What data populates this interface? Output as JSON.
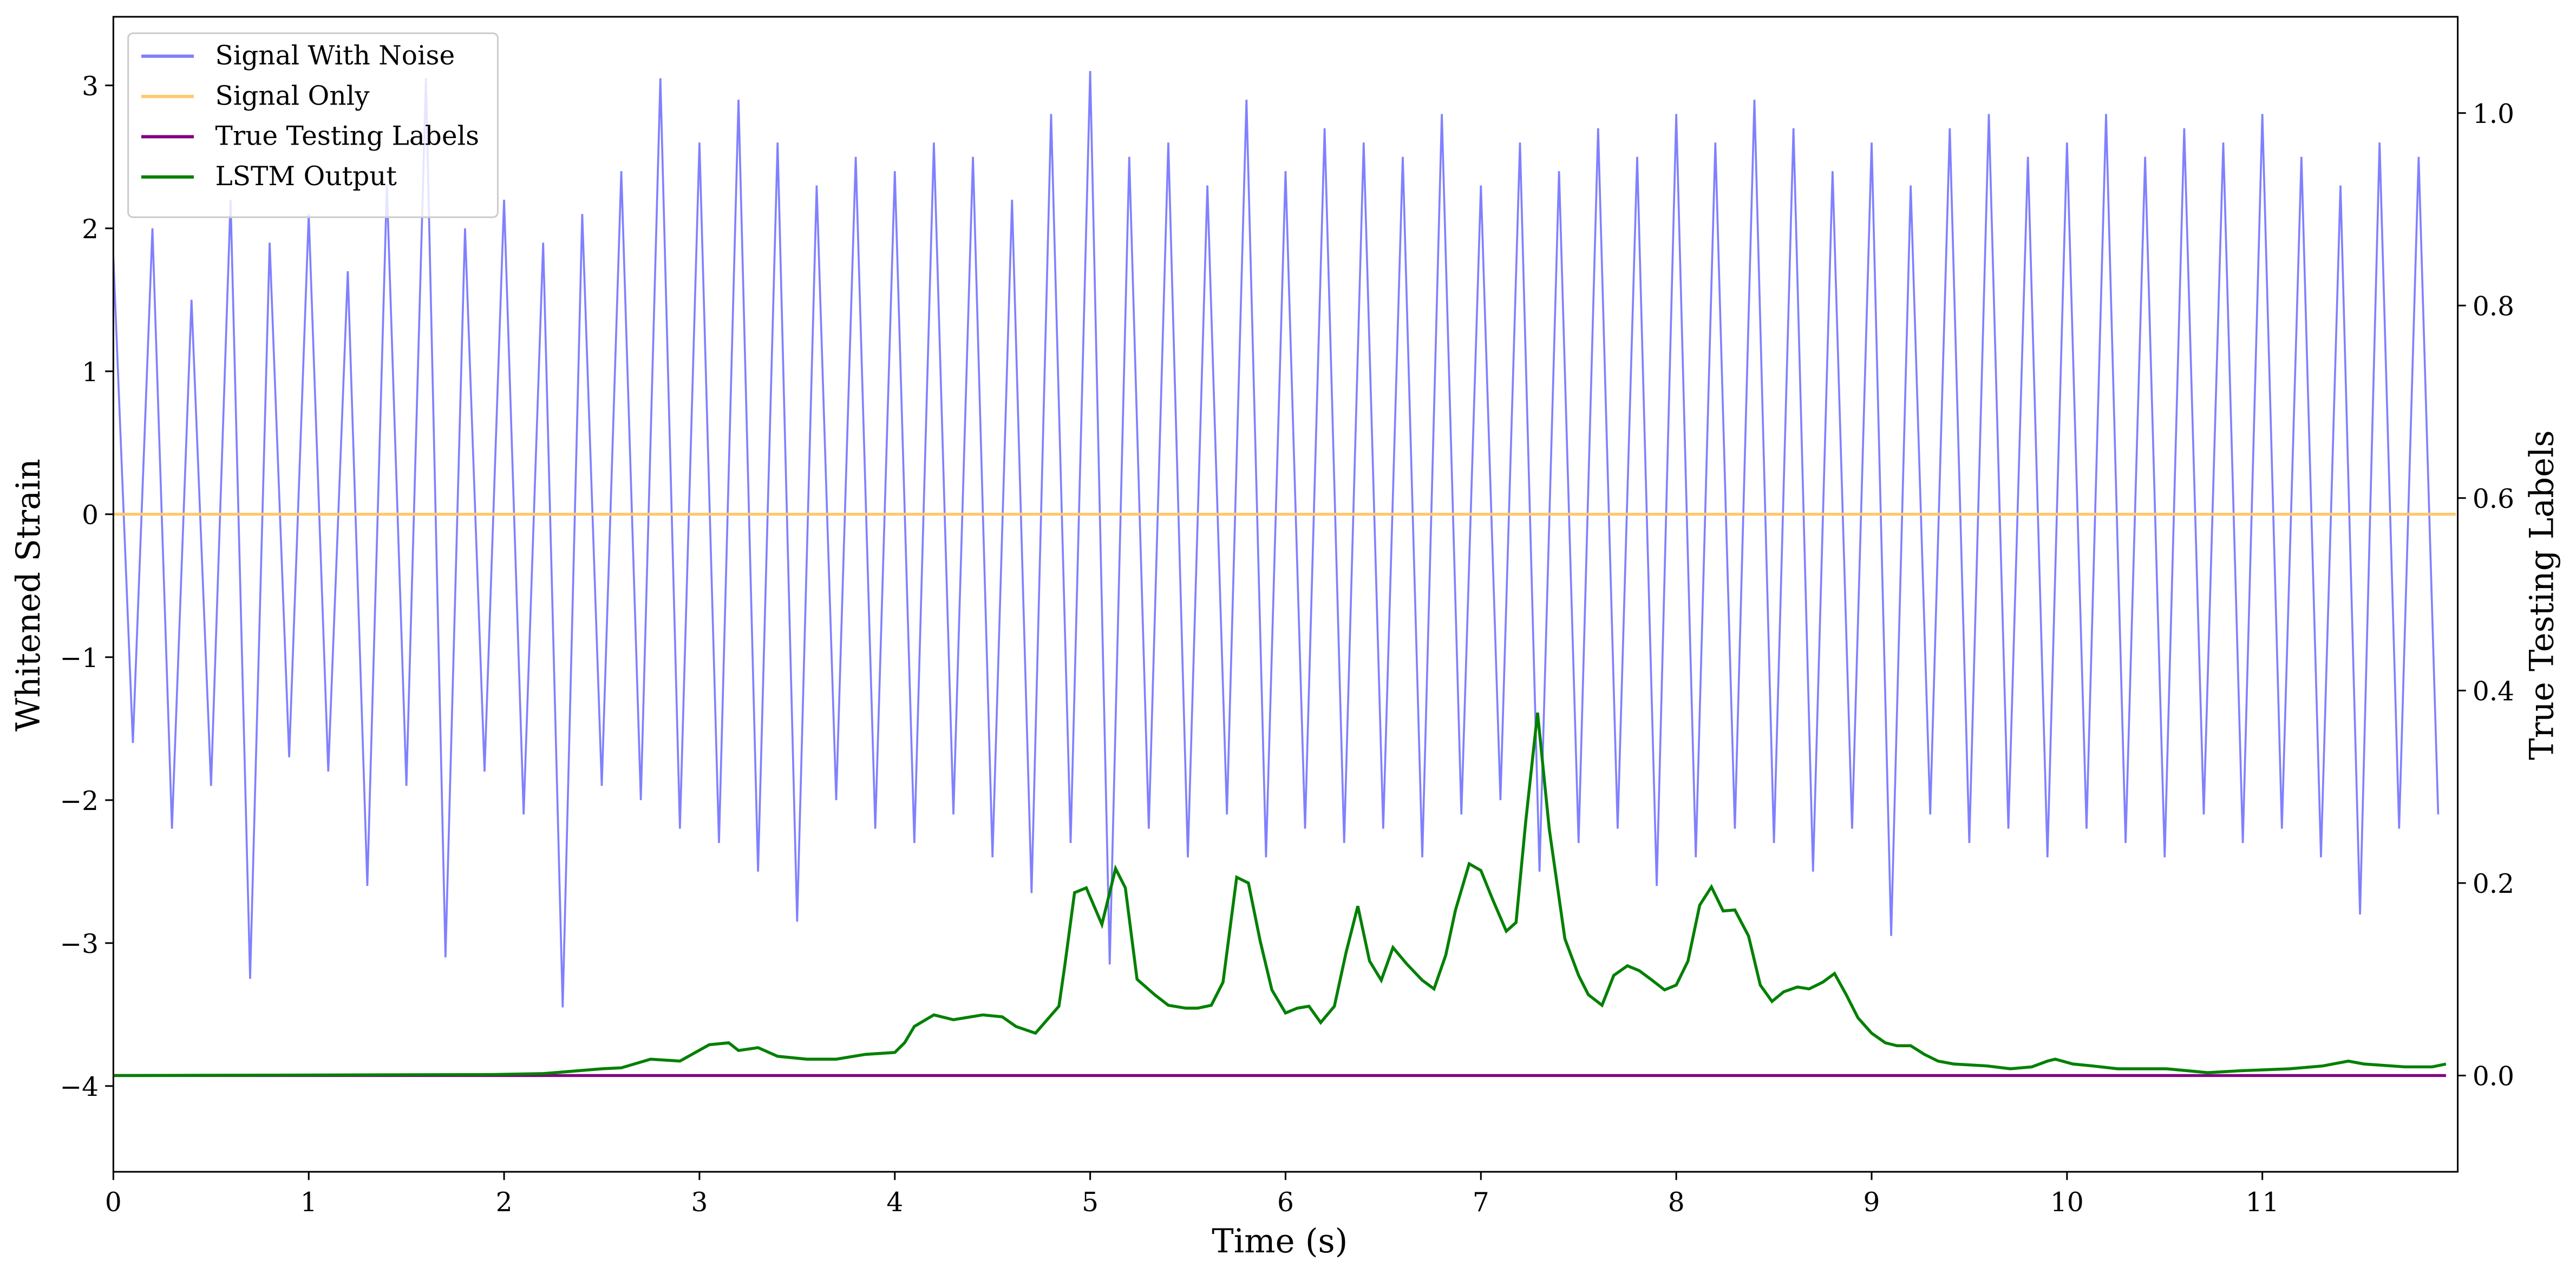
{
  "chart_data": {
    "type": "line",
    "xlabel": "Time (s)",
    "ylabel": "Whitened Strain",
    "y2label": "True Testing Labels",
    "xlim": [
      0,
      12
    ],
    "xticks": [
      0,
      1,
      2,
      3,
      4,
      5,
      6,
      7,
      8,
      9,
      10,
      11
    ],
    "ylim": [
      -4.6,
      3.48
    ],
    "yticks": [
      {
        "value": -4,
        "label": "−4"
      },
      {
        "value": -3,
        "label": "−3"
      },
      {
        "value": -2,
        "label": "−2"
      },
      {
        "value": -1,
        "label": "−1"
      },
      0,
      1,
      2,
      3
    ],
    "y2lim": [
      -0.1,
      1.1
    ],
    "y2ticks": [
      {
        "value": 0,
        "label": "0.0"
      },
      {
        "value": 0.2,
        "label": "0.2"
      },
      {
        "value": 0.4,
        "label": "0.4"
      },
      {
        "value": 0.6,
        "label": "0.6"
      },
      {
        "value": 0.8,
        "label": "0.8"
      },
      {
        "value": 1,
        "label": "1.0"
      }
    ],
    "legend": "upper left",
    "series": [
      {
        "name": "Signal With Noise",
        "color": "#8080ff",
        "axis": "y",
        "x": [
          0,
          0.1,
          0.2,
          0.3,
          0.4,
          0.5,
          0.6,
          0.7,
          0.8,
          0.9,
          1,
          1.1,
          1.2,
          1.3,
          1.4,
          1.5,
          1.6,
          1.7,
          1.8,
          1.9,
          2,
          2.1,
          2.2,
          2.3,
          2.4,
          2.5,
          2.6,
          2.7,
          2.8,
          2.9,
          3,
          3.1,
          3.2,
          3.3,
          3.4,
          3.5,
          3.6,
          3.7,
          3.8,
          3.9,
          4,
          4.1,
          4.2,
          4.3,
          4.4,
          4.5,
          4.6,
          4.7,
          4.8,
          4.9,
          5,
          5.1,
          5.2,
          5.3,
          5.4,
          5.5,
          5.6,
          5.7,
          5.8,
          5.9,
          6,
          6.1,
          6.2,
          6.3,
          6.4,
          6.5,
          6.6,
          6.7,
          6.8,
          6.9,
          7,
          7.1,
          7.2,
          7.3,
          7.4,
          7.5,
          7.6,
          7.7,
          7.8,
          7.9,
          8,
          8.1,
          8.2,
          8.3,
          8.4,
          8.5,
          8.6,
          8.7,
          8.8,
          8.9,
          9,
          9.1,
          9.2,
          9.3,
          9.4,
          9.5,
          9.6,
          9.7,
          9.8,
          9.9,
          10,
          10.1,
          10.2,
          10.3,
          10.4,
          10.5,
          10.6,
          10.7,
          10.8,
          10.9,
          11,
          11.1,
          11.2,
          11.3,
          11.4,
          11.5,
          11.6,
          11.7,
          11.8,
          11.9
        ],
        "values": [
          1.8,
          -1.6,
          2.0,
          -2.2,
          1.5,
          -1.9,
          2.2,
          -3.25,
          1.9,
          -1.7,
          2.1,
          -1.8,
          1.7,
          -2.6,
          2.3,
          -1.9,
          3.05,
          -3.1,
          2.0,
          -1.8,
          2.2,
          -2.1,
          1.9,
          -3.45,
          2.1,
          -1.9,
          2.4,
          -2.0,
          3.05,
          -2.2,
          2.6,
          -2.3,
          2.9,
          -2.5,
          2.6,
          -2.85,
          2.3,
          -2.0,
          2.5,
          -2.2,
          2.4,
          -2.3,
          2.6,
          -2.1,
          2.5,
          -2.4,
          2.2,
          -2.65,
          2.8,
          -2.3,
          3.1,
          -3.15,
          2.5,
          -2.2,
          2.6,
          -2.4,
          2.3,
          -2.1,
          2.9,
          -2.4,
          2.4,
          -2.2,
          2.7,
          -2.3,
          2.6,
          -2.2,
          2.5,
          -2.4,
          2.8,
          -2.1,
          2.3,
          -2.0,
          2.6,
          -2.5,
          2.4,
          -2.3,
          2.7,
          -2.2,
          2.5,
          -2.6,
          2.8,
          -2.4,
          2.6,
          -2.2,
          2.9,
          -2.3,
          2.7,
          -2.5,
          2.4,
          -2.2,
          2.6,
          -2.95,
          2.3,
          -2.1,
          2.7,
          -2.3,
          2.8,
          -2.2,
          2.5,
          -2.4,
          2.6,
          -2.2,
          2.8,
          -2.3,
          2.5,
          -2.4,
          2.7,
          -2.1,
          2.6,
          -2.3,
          2.8,
          -2.2,
          2.5,
          -2.4,
          2.3,
          -2.8,
          2.6,
          -2.2,
          2.5,
          -2.1
        ]
      },
      {
        "name": "Signal Only",
        "color": "#ffc870",
        "axis": "y",
        "x": [
          0,
          11.99
        ],
        "values": [
          0,
          0
        ]
      },
      {
        "name": "True Testing Labels",
        "color": "#800080",
        "axis": "y2",
        "x": [
          0,
          11.94
        ],
        "values": [
          0,
          0
        ]
      },
      {
        "name": "LSTM Output",
        "color": "#008000",
        "axis": "y2",
        "x": [
          0,
          1.94,
          2.2,
          2.5,
          2.6,
          2.75,
          2.9,
          3.05,
          3.15,
          3.2,
          3.3,
          3.4,
          3.55,
          3.7,
          3.85,
          4.0,
          4.05,
          4.1,
          4.2,
          4.3,
          4.45,
          4.55,
          4.62,
          4.72,
          4.84,
          4.87,
          4.92,
          4.98,
          5.06,
          5.13,
          5.18,
          5.24,
          5.33,
          5.4,
          5.49,
          5.55,
          5.62,
          5.68,
          5.75,
          5.81,
          5.87,
          5.93,
          6.0,
          6.06,
          6.12,
          6.18,
          6.25,
          6.31,
          6.37,
          6.43,
          6.49,
          6.55,
          6.62,
          6.7,
          6.76,
          6.82,
          6.87,
          6.94,
          7.0,
          7.06,
          7.13,
          7.18,
          7.23,
          7.29,
          7.35,
          7.43,
          7.5,
          7.55,
          7.62,
          7.68,
          7.75,
          7.81,
          7.87,
          7.94,
          8.0,
          8.06,
          8.12,
          8.18,
          8.24,
          8.3,
          8.37,
          8.43,
          8.49,
          8.55,
          8.62,
          8.68,
          8.75,
          8.81,
          8.87,
          8.93,
          9.0,
          9.07,
          9.13,
          9.2,
          9.27,
          9.34,
          9.42,
          9.59,
          9.71,
          9.82,
          9.9,
          9.94,
          10.03,
          10.13,
          10.26,
          10.51,
          10.72,
          10.89,
          11.14,
          11.31,
          11.44,
          11.52,
          11.73,
          11.87,
          11.94
        ],
        "values": [
          0,
          0.001,
          0.002,
          0.007,
          0.008,
          0.017,
          0.015,
          0.032,
          0.034,
          0.026,
          0.029,
          0.02,
          0.017,
          0.017,
          0.022,
          0.024,
          0.034,
          0.051,
          0.063,
          0.058,
          0.063,
          0.061,
          0.051,
          0.044,
          0.072,
          0.114,
          0.19,
          0.195,
          0.157,
          0.215,
          0.195,
          0.1,
          0.084,
          0.073,
          0.07,
          0.07,
          0.073,
          0.097,
          0.206,
          0.2,
          0.14,
          0.089,
          0.065,
          0.07,
          0.072,
          0.055,
          0.072,
          0.128,
          0.176,
          0.119,
          0.099,
          0.133,
          0.116,
          0.099,
          0.09,
          0.125,
          0.172,
          0.22,
          0.213,
          0.183,
          0.15,
          0.159,
          0.265,
          0.377,
          0.256,
          0.142,
          0.104,
          0.084,
          0.073,
          0.104,
          0.114,
          0.109,
          0.1,
          0.089,
          0.094,
          0.119,
          0.177,
          0.196,
          0.171,
          0.172,
          0.145,
          0.094,
          0.077,
          0.087,
          0.092,
          0.09,
          0.097,
          0.106,
          0.084,
          0.06,
          0.044,
          0.034,
          0.031,
          0.031,
          0.022,
          0.015,
          0.012,
          0.01,
          0.007,
          0.009,
          0.015,
          0.017,
          0.012,
          0.01,
          0.007,
          0.007,
          0.003,
          0.005,
          0.007,
          0.01,
          0.015,
          0.012,
          0.009,
          0.009,
          0.012
        ]
      }
    ]
  }
}
